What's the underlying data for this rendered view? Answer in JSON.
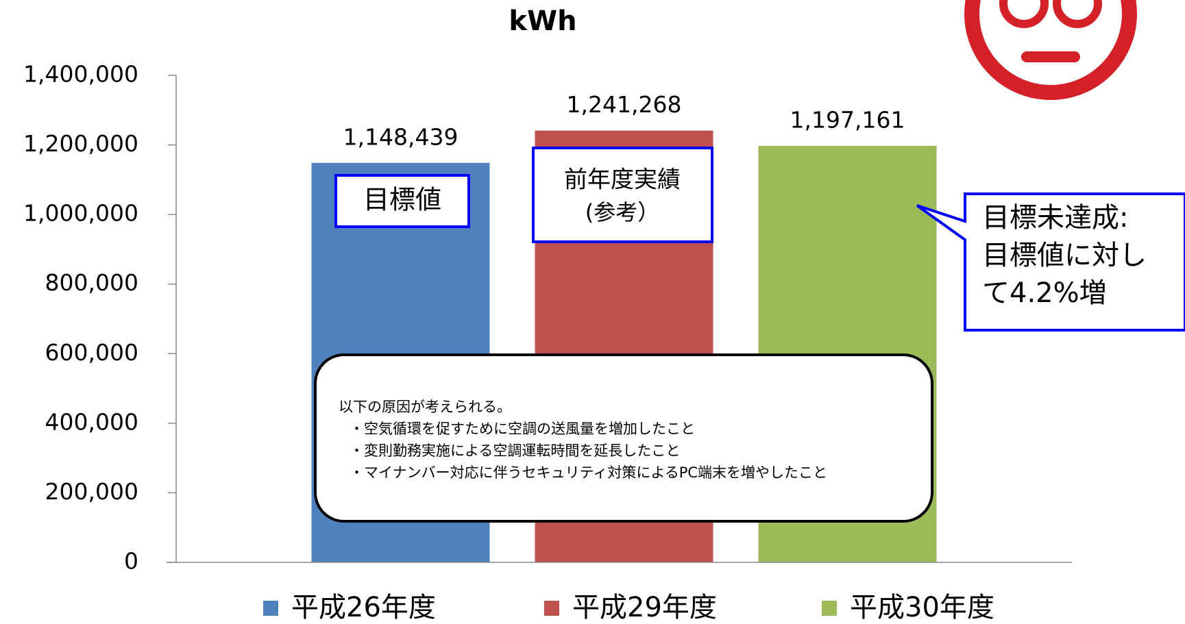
{
  "chart_data": {
    "type": "bar",
    "title": "kWh",
    "categories": [
      null
    ],
    "series": [
      {
        "name": "平成26年度",
        "color": "#4f81bd",
        "values": [
          1148439
        ],
        "value_labels": [
          "1,148,439"
        ]
      },
      {
        "name": "平成29年度",
        "color": "#c0504d",
        "values": [
          1241268
        ],
        "value_labels": [
          "1,241,268"
        ]
      },
      {
        "name": "平成30年度",
        "color": "#9bbb59",
        "values": [
          1197161
        ],
        "value_labels": [
          "1,197,161"
        ]
      }
    ],
    "ylim": [
      0,
      1400000
    ],
    "yticks": [
      0,
      {
        "value": 200000,
        "label": "200,000"
      },
      {
        "value": 400000,
        "label": "400,000"
      },
      {
        "value": 600000,
        "label": "600,000"
      },
      {
        "value": 800000,
        "label": "800,000"
      },
      {
        "value": 1000000,
        "label": "1,000,000"
      },
      {
        "value": 1200000,
        "label": "1,200,000"
      },
      {
        "value": 1400000,
        "label": "1,400,000"
      }
    ],
    "legend": "bottom",
    "annotations": [
      "目標値",
      "前年度実績",
      "(参考）",
      "目標未達成:",
      "目標値に対し",
      "て4.2%増"
    ],
    "note": [
      "以下の原因が考えられる。",
      "・空気循環を促すために空調の送風量を増加したこと",
      "・変則勤務実施による空調運転時間を延長したこと",
      "・マイナンバー対応に伴うセキュリティ対策によるPC端末を増やしたこと"
    ]
  }
}
